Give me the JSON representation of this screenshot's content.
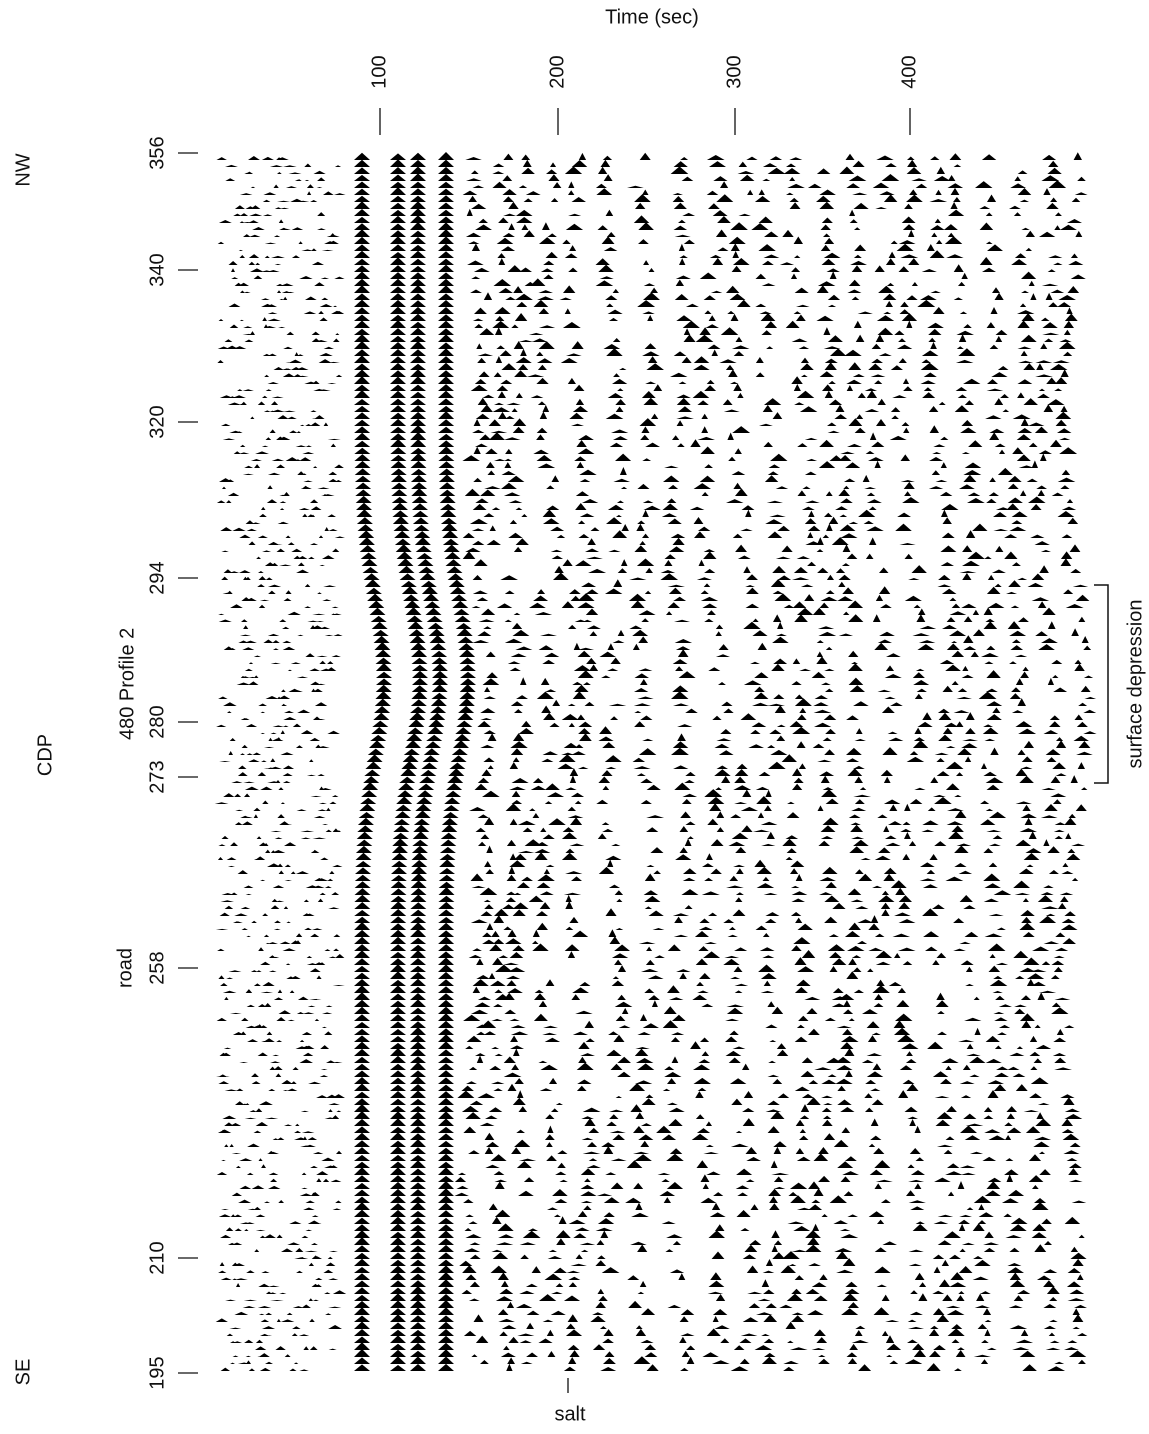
{
  "axes": {
    "time_title": "Time (sec)",
    "time_ticks": [
      100,
      200,
      300,
      400
    ],
    "cdp_title": "CDP",
    "cdp_ticks": [
      356,
      340,
      320,
      294,
      280,
      273,
      258,
      210,
      195
    ]
  },
  "labels": {
    "nw": "NW",
    "se": "SE",
    "profile": "480 Profile 2",
    "road": "road",
    "salt": "salt",
    "depression": "surface depression"
  }
}
